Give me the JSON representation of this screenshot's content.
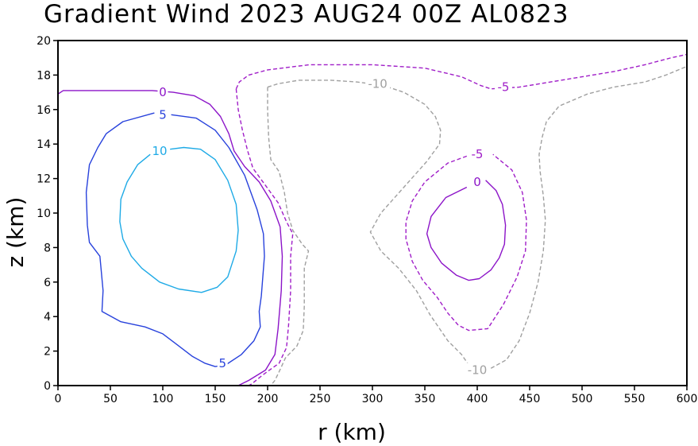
{
  "chart_data": {
    "type": "contour",
    "title": "Gradient Wind 2023 AUG24 00Z  AL0823",
    "xlabel": "r (km)",
    "ylabel": "z (km)",
    "xlim": [
      0,
      600
    ],
    "ylim": [
      0,
      20
    ],
    "xticks": [
      0,
      50,
      100,
      150,
      200,
      250,
      300,
      350,
      400,
      450,
      500,
      550,
      600
    ],
    "yticks": [
      0,
      2,
      4,
      6,
      8,
      10,
      12,
      14,
      16,
      18,
      20
    ],
    "grid": false,
    "colors": {
      "c10": "#1eaae6",
      "c5": "#2842dc",
      "c0": "#8c14c8",
      "cneg5": "#a01ec8",
      "cneg10": "#a0a0a0"
    },
    "contours": [
      {
        "level": 10,
        "name": "contour-10",
        "color": "#1eaae6",
        "dash": false,
        "label": "10",
        "label_at": [
          97,
          13.6
        ],
        "points": [
          [
            88,
            13.4
          ],
          [
            76,
            12.8
          ],
          [
            66,
            11.8
          ],
          [
            60,
            10.8
          ],
          [
            59,
            9.5
          ],
          [
            62,
            8.5
          ],
          [
            70,
            7.5
          ],
          [
            80,
            6.8
          ],
          [
            97,
            6.0
          ],
          [
            115,
            5.6
          ],
          [
            137,
            5.4
          ],
          [
            152,
            5.7
          ],
          [
            162,
            6.3
          ],
          [
            170,
            7.8
          ],
          [
            172,
            9.0
          ],
          [
            170,
            10.5
          ],
          [
            162,
            11.9
          ],
          [
            150,
            13.1
          ],
          [
            136,
            13.7
          ],
          [
            120,
            13.8
          ],
          [
            107,
            13.7
          ]
        ]
      },
      {
        "level": 5,
        "name": "contour-5-left",
        "color": "#2842dc",
        "dash": false,
        "label": "5",
        "label_at": [
          100,
          15.7
        ],
        "points": [
          [
            92,
            15.8
          ],
          [
            62,
            15.3
          ],
          [
            46,
            14.6
          ],
          [
            38,
            13.8
          ],
          [
            30,
            12.8
          ],
          [
            27,
            11.2
          ],
          [
            28,
            9.3
          ],
          [
            30,
            8.3
          ],
          [
            40,
            7.5
          ],
          [
            43,
            5.5
          ],
          [
            42,
            4.3
          ],
          [
            60,
            3.7
          ],
          [
            83,
            3.4
          ],
          [
            100,
            3.0
          ],
          [
            113,
            2.4
          ],
          [
            128,
            1.7
          ],
          [
            140,
            1.3
          ],
          [
            150,
            1.1
          ],
          [
            160,
            1.2
          ],
          [
            175,
            1.8
          ],
          [
            187,
            2.6
          ],
          [
            193,
            3.4
          ],
          [
            192,
            4.3
          ],
          [
            194,
            5.2
          ],
          [
            197,
            7.5
          ],
          [
            196,
            8.8
          ],
          [
            190,
            10.2
          ],
          [
            178,
            12.2
          ],
          [
            163,
            13.8
          ],
          [
            150,
            14.8
          ],
          [
            132,
            15.5
          ],
          [
            108,
            15.7
          ]
        ]
      },
      {
        "level": 5,
        "name": "contour-5-right",
        "color": "#2842dc",
        "dash": false,
        "label": "5",
        "label_at": [
          157,
          1.3
        ],
        "points": [
          [
            100,
            0
          ],
          [
            157,
            0
          ]
        ]
      },
      {
        "level": 0,
        "name": "contour-0-left",
        "color": "#8c14c8",
        "dash": false,
        "label": "0",
        "label_at": [
          100,
          17.0
        ],
        "points": [
          [
            0,
            16.9
          ],
          [
            5,
            17.1
          ],
          [
            30,
            17.1
          ],
          [
            60,
            17.1
          ],
          [
            90,
            17.1
          ],
          [
            110,
            17.0
          ],
          [
            130,
            16.8
          ],
          [
            145,
            16.3
          ],
          [
            155,
            15.6
          ],
          [
            163,
            14.6
          ],
          [
            168,
            13.6
          ],
          [
            178,
            12.7
          ],
          [
            192,
            11.8
          ],
          [
            203,
            10.7
          ],
          [
            212,
            9.2
          ],
          [
            214,
            7.5
          ],
          [
            213,
            5.5
          ],
          [
            210,
            3.3
          ],
          [
            207,
            1.8
          ],
          [
            198,
            0.9
          ],
          [
            182,
            0.3
          ],
          [
            172,
            0.0
          ]
        ]
      },
      {
        "level": 0,
        "name": "contour-0-right",
        "color": "#8c14c8",
        "dash": false,
        "label": "0",
        "label_at": [
          400,
          11.8
        ],
        "points": [
          [
            390,
            11.5
          ],
          [
            370,
            10.9
          ],
          [
            356,
            9.8
          ],
          [
            352,
            8.8
          ],
          [
            356,
            8.0
          ],
          [
            366,
            7.1
          ],
          [
            380,
            6.4
          ],
          [
            392,
            6.1
          ],
          [
            402,
            6.2
          ],
          [
            413,
            6.7
          ],
          [
            421,
            7.4
          ],
          [
            426,
            8.2
          ],
          [
            427,
            9.3
          ],
          [
            424,
            10.5
          ],
          [
            418,
            11.3
          ],
          [
            408,
            11.9
          ]
        ]
      },
      {
        "level": -5,
        "name": "contour-neg5-top",
        "color": "#a01ec8",
        "dash": true,
        "label": "-5",
        "label_at": [
          425,
          17.3
        ],
        "points": [
          [
            170,
            17.2
          ],
          [
            173,
            17.6
          ],
          [
            182,
            18.0
          ],
          [
            200,
            18.3
          ],
          [
            240,
            18.6
          ],
          [
            300,
            18.6
          ],
          [
            350,
            18.4
          ],
          [
            385,
            17.9
          ],
          [
            403,
            17.4
          ],
          [
            413,
            17.2
          ],
          [
            440,
            17.3
          ],
          [
            470,
            17.6
          ],
          [
            500,
            17.9
          ],
          [
            530,
            18.2
          ],
          [
            560,
            18.6
          ],
          [
            585,
            19.0
          ],
          [
            600,
            19.2
          ]
        ]
      },
      {
        "level": -5,
        "name": "contour-neg5-left",
        "color": "#a01ec8",
        "dash": true,
        "label": "",
        "label_at": [
          0,
          0
        ],
        "points": [
          [
            170,
            17.2
          ],
          [
            172,
            16.0
          ],
          [
            176,
            14.8
          ],
          [
            181,
            13.6
          ],
          [
            186,
            12.6
          ],
          [
            198,
            11.6
          ],
          [
            210,
            10.6
          ],
          [
            218,
            9.5
          ],
          [
            224,
            8.8
          ],
          [
            222,
            7.5
          ],
          [
            222,
            5.5
          ],
          [
            220,
            3.5
          ],
          [
            218,
            2.2
          ],
          [
            211,
            1.3
          ],
          [
            195,
            0.6
          ],
          [
            185,
            0.1
          ],
          [
            182,
            0.0
          ]
        ]
      },
      {
        "level": -5,
        "name": "contour-neg5-right",
        "color": "#a01ec8",
        "dash": true,
        "label": "-5",
        "label_at": [
          400,
          13.4
        ],
        "points": [
          [
            390,
            13.3
          ],
          [
            372,
            12.9
          ],
          [
            350,
            11.8
          ],
          [
            338,
            10.7
          ],
          [
            332,
            9.5
          ],
          [
            332,
            8.5
          ],
          [
            338,
            7.2
          ],
          [
            348,
            6.1
          ],
          [
            362,
            5.1
          ],
          [
            372,
            4.2
          ],
          [
            382,
            3.5
          ],
          [
            392,
            3.2
          ],
          [
            410,
            3.3
          ],
          [
            425,
            4.7
          ],
          [
            438,
            6.3
          ],
          [
            446,
            7.8
          ],
          [
            447,
            9.6
          ],
          [
            443,
            11.2
          ],
          [
            433,
            12.5
          ],
          [
            415,
            13.4
          ]
        ]
      },
      {
        "level": -10,
        "name": "contour-neg10-top",
        "color": "#a0a0a0",
        "dash": true,
        "label": "-10",
        "label_at": [
          305,
          17.5
        ],
        "points": [
          [
            200,
            17.3
          ],
          [
            210,
            17.5
          ],
          [
            230,
            17.7
          ],
          [
            260,
            17.7
          ],
          [
            285,
            17.6
          ],
          [
            310,
            17.4
          ],
          [
            330,
            17.0
          ],
          [
            350,
            16.3
          ],
          [
            360,
            15.6
          ],
          [
            365,
            14.8
          ],
          [
            364,
            14.0
          ],
          [
            352,
            13.0
          ],
          [
            330,
            11.5
          ],
          [
            308,
            10.0
          ],
          [
            298,
            8.9
          ],
          [
            308,
            7.8
          ],
          [
            325,
            6.8
          ],
          [
            342,
            5.5
          ],
          [
            355,
            4.1
          ],
          [
            372,
            2.6
          ],
          [
            385,
            1.8
          ],
          [
            393,
            1.1
          ],
          [
            400,
            0.9
          ]
        ]
      },
      {
        "level": -10,
        "name": "contour-neg10-left",
        "color": "#a0a0a0",
        "dash": true,
        "label": "",
        "label_at": [
          0,
          0
        ],
        "points": [
          [
            200,
            17.3
          ],
          [
            200,
            16.0
          ],
          [
            201,
            14.4
          ],
          [
            203,
            13.1
          ],
          [
            211,
            12.4
          ],
          [
            216,
            11.2
          ],
          [
            219,
            10.0
          ],
          [
            224,
            9.0
          ],
          [
            233,
            8.2
          ],
          [
            239,
            7.8
          ],
          [
            235,
            6.8
          ],
          [
            235,
            4.6
          ],
          [
            234,
            3.2
          ],
          [
            228,
            2.3
          ],
          [
            217,
            1.6
          ],
          [
            211,
            0.8
          ],
          [
            207,
            0.3
          ],
          [
            203,
            0.0
          ]
        ]
      },
      {
        "level": -10,
        "name": "contour-neg10-right",
        "color": "#a0a0a0",
        "dash": true,
        "label": "-10",
        "label_at": [
          400,
          0.9
        ],
        "points": [
          [
            413,
            1.0
          ],
          [
            428,
            1.5
          ],
          [
            440,
            2.6
          ],
          [
            450,
            4.2
          ],
          [
            458,
            6.0
          ],
          [
            463,
            7.8
          ],
          [
            465,
            9.6
          ],
          [
            463,
            11.0
          ],
          [
            460,
            12.4
          ],
          [
            459,
            13.4
          ],
          [
            462,
            14.4
          ],
          [
            466,
            15.3
          ],
          [
            478,
            16.2
          ],
          [
            505,
            16.9
          ],
          [
            530,
            17.3
          ],
          [
            560,
            17.6
          ],
          [
            580,
            18.0
          ],
          [
            600,
            18.5
          ]
        ]
      }
    ]
  }
}
